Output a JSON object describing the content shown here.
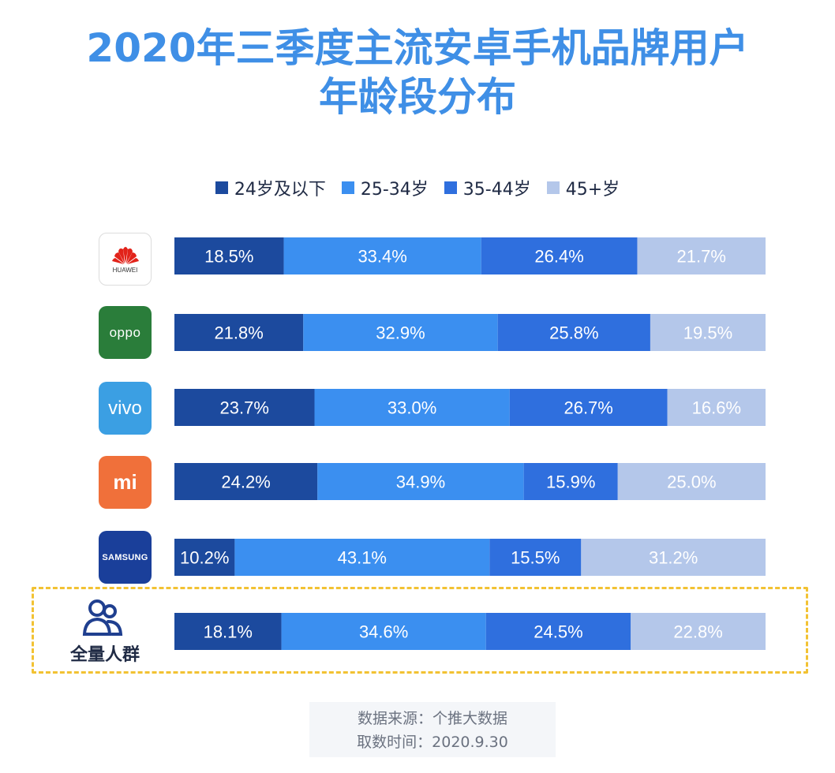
{
  "title_line1": "2020年三季度主流安卓手机品牌用户",
  "title_line2": "年龄段分布",
  "colors": {
    "title": "#3f8fe6",
    "series": [
      "#1c4a9e",
      "#3b8ff0",
      "#2f6fde",
      "#b4c7ea"
    ],
    "highlight_border": "#f2c233",
    "huawei_red": "#e2231a",
    "oppo_bg": "#2a7d3a",
    "vivo_bg": "#3b9fe3",
    "mi_bg": "#f0703a",
    "samsung_bg": "#1a3f9a"
  },
  "logos": {
    "huawei": "HUAWEI",
    "oppo": "oppo",
    "vivo": "vivo",
    "mi": "mi",
    "samsung": "SAMSUNG",
    "all": "全量人群",
    "all_icon": "people-icon"
  },
  "source": {
    "line1": "数据来源：个推大数据",
    "line2": "取数时间：2020.9.30"
  },
  "chart_data": {
    "type": "bar",
    "orientation": "horizontal",
    "stacked": true,
    "percent_stacked": true,
    "legend_position": "top",
    "categories": [
      "HUAWEI",
      "OPPO",
      "vivo",
      "mi",
      "SAMSUNG",
      "全量人群"
    ],
    "series": [
      {
        "name": "24岁及以下",
        "values": [
          18.5,
          21.8,
          23.7,
          24.2,
          10.2,
          18.1
        ],
        "labels": [
          "18.5%",
          "21.8%",
          "23.7%",
          "24.2%",
          "10.2%",
          "18.1%"
        ]
      },
      {
        "name": "25-34岁",
        "values": [
          33.4,
          32.9,
          33.0,
          34.9,
          43.1,
          34.6
        ],
        "labels": [
          "33.4%",
          "32.9%",
          "33.0%",
          "34.9%",
          "43.1%",
          "34.6%"
        ]
      },
      {
        "name": "35-44岁",
        "values": [
          26.4,
          25.8,
          26.7,
          15.9,
          15.5,
          24.5
        ],
        "labels": [
          "26.4%",
          "25.8%",
          "26.7%",
          "15.9%",
          "15.5%",
          "24.5%"
        ]
      },
      {
        "name": "45+岁",
        "values": [
          21.7,
          19.5,
          16.6,
          25.0,
          31.2,
          22.8
        ],
        "labels": [
          "21.7%",
          "19.5%",
          "16.6%",
          "25.0%",
          "31.2%",
          "22.8%"
        ]
      }
    ]
  }
}
